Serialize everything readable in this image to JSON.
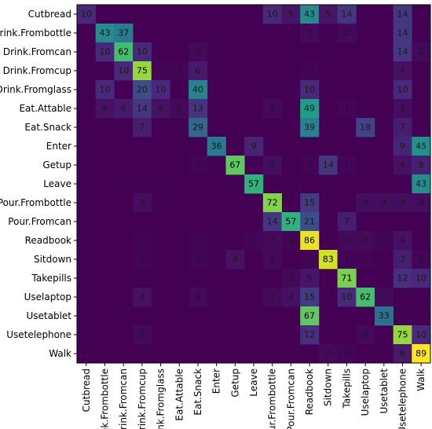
{
  "chart_data": {
    "type": "heatmap",
    "title": "",
    "xlabel": "",
    "ylabel": "",
    "rows": [
      "Cutbread",
      "Drink.Frombottle",
      "Drink.Fromcan",
      "Drink.Fromcup",
      "Drink.Fromglass",
      "Eat.Attable",
      "Eat.Snack",
      "Enter",
      "Getup",
      "Leave",
      "Pour.Frombottle",
      "Pour.Fromcan",
      "Readbook",
      "Sitdown",
      "Takepills",
      "Uselaptop",
      "Usetablet",
      "Usetelephone",
      "Walk"
    ],
    "columns": [
      "Cutbread",
      "Drink.Frombottle",
      "Drink.Fromcan",
      "Drink.Fromcup",
      "Drink.Fromglass",
      "Eat.Attable",
      "Eat.Snack",
      "Enter",
      "Getup",
      "Leave",
      "Pour.Frombottle",
      "Pour.Fromcan",
      "Readbook",
      "Sitdown",
      "Takepills",
      "Uselaptop",
      "Usetablet",
      "Usetelephone",
      "Walk"
    ],
    "value_range": [
      0,
      89
    ],
    "colormap": "viridis",
    "cells": [
      {
        "row": 0,
        "col": 0,
        "value": 10
      },
      {
        "row": 0,
        "col": 10,
        "value": 10
      },
      {
        "row": 0,
        "col": 11,
        "value": 5
      },
      {
        "row": 0,
        "col": 12,
        "value": 43
      },
      {
        "row": 0,
        "col": 13,
        "value": 5
      },
      {
        "row": 0,
        "col": 14,
        "value": 14
      },
      {
        "row": 0,
        "col": 17,
        "value": 14
      },
      {
        "row": 1,
        "col": 1,
        "value": 43
      },
      {
        "row": 1,
        "col": 2,
        "value": 37
      },
      {
        "row": 1,
        "col": 12,
        "value": 2
      },
      {
        "row": 1,
        "col": 14,
        "value": 2
      },
      {
        "row": 1,
        "col": 17,
        "value": 14
      },
      {
        "row": 2,
        "col": 1,
        "value": 10
      },
      {
        "row": 2,
        "col": 2,
        "value": 62
      },
      {
        "row": 2,
        "col": 3,
        "value": 10
      },
      {
        "row": 2,
        "col": 6,
        "value": 2
      },
      {
        "row": 2,
        "col": 17,
        "value": 14
      },
      {
        "row": 2,
        "col": 18,
        "value": 2
      },
      {
        "row": 3,
        "col": 2,
        "value": 10
      },
      {
        "row": 3,
        "col": 3,
        "value": 75
      },
      {
        "row": 3,
        "col": 4,
        "value": 1
      },
      {
        "row": 3,
        "col": 5,
        "value": 1
      },
      {
        "row": 3,
        "col": 6,
        "value": 6
      },
      {
        "row": 3,
        "col": 12,
        "value": 1
      },
      {
        "row": 3,
        "col": 17,
        "value": 4
      },
      {
        "row": 4,
        "col": 1,
        "value": 10
      },
      {
        "row": 4,
        "col": 3,
        "value": 20
      },
      {
        "row": 4,
        "col": 4,
        "value": 10
      },
      {
        "row": 4,
        "col": 6,
        "value": 40
      },
      {
        "row": 4,
        "col": 12,
        "value": 10
      },
      {
        "row": 4,
        "col": 17,
        "value": 10
      },
      {
        "row": 5,
        "col": 1,
        "value": 4
      },
      {
        "row": 5,
        "col": 2,
        "value": 6
      },
      {
        "row": 5,
        "col": 3,
        "value": 14
      },
      {
        "row": 5,
        "col": 4,
        "value": 4
      },
      {
        "row": 5,
        "col": 5,
        "value": 2
      },
      {
        "row": 5,
        "col": 6,
        "value": 13
      },
      {
        "row": 5,
        "col": 10,
        "value": 2
      },
      {
        "row": 5,
        "col": 12,
        "value": 49
      },
      {
        "row": 5,
        "col": 14,
        "value": 1
      },
      {
        "row": 5,
        "col": 17,
        "value": 3
      },
      {
        "row": 6,
        "col": 3,
        "value": 7
      },
      {
        "row": 6,
        "col": 6,
        "value": 29
      },
      {
        "row": 6,
        "col": 12,
        "value": 39
      },
      {
        "row": 6,
        "col": 15,
        "value": 18
      },
      {
        "row": 6,
        "col": 17,
        "value": 7
      },
      {
        "row": 7,
        "col": 7,
        "value": 36
      },
      {
        "row": 7,
        "col": 9,
        "value": 9
      },
      {
        "row": 7,
        "col": 17,
        "value": 9
      },
      {
        "row": 7,
        "col": 18,
        "value": 45
      },
      {
        "row": 8,
        "col": 6,
        "value": 1
      },
      {
        "row": 8,
        "col": 8,
        "value": 67
      },
      {
        "row": 8,
        "col": 10,
        "value": 3
      },
      {
        "row": 8,
        "col": 12,
        "value": 1
      },
      {
        "row": 8,
        "col": 13,
        "value": 14
      },
      {
        "row": 8,
        "col": 14,
        "value": 1
      },
      {
        "row": 8,
        "col": 17,
        "value": 4
      },
      {
        "row": 8,
        "col": 18,
        "value": 8
      },
      {
        "row": 9,
        "col": 9,
        "value": 57
      },
      {
        "row": 9,
        "col": 18,
        "value": 43
      },
      {
        "row": 10,
        "col": 3,
        "value": 3
      },
      {
        "row": 10,
        "col": 10,
        "value": 72
      },
      {
        "row": 10,
        "col": 12,
        "value": 15
      },
      {
        "row": 10,
        "col": 15,
        "value": 3
      },
      {
        "row": 10,
        "col": 16,
        "value": 3
      },
      {
        "row": 10,
        "col": 17,
        "value": 3
      },
      {
        "row": 10,
        "col": 18,
        "value": 3
      },
      {
        "row": 11,
        "col": 10,
        "value": 14
      },
      {
        "row": 11,
        "col": 11,
        "value": 57
      },
      {
        "row": 11,
        "col": 12,
        "value": 21
      },
      {
        "row": 11,
        "col": 14,
        "value": 7
      },
      {
        "row": 12,
        "col": 3,
        "value": 1
      },
      {
        "row": 12,
        "col": 6,
        "value": 1
      },
      {
        "row": 12,
        "col": 9,
        "value": 1
      },
      {
        "row": 12,
        "col": 10,
        "value": 2
      },
      {
        "row": 12,
        "col": 11,
        "value": 1
      },
      {
        "row": 12,
        "col": 12,
        "value": 86
      },
      {
        "row": 12,
        "col": 14,
        "value": 2
      },
      {
        "row": 12,
        "col": 15,
        "value": 2
      },
      {
        "row": 12,
        "col": 16,
        "value": 1
      },
      {
        "row": 12,
        "col": 17,
        "value": 4
      },
      {
        "row": 13,
        "col": 3,
        "value": 1
      },
      {
        "row": 13,
        "col": 6,
        "value": 1
      },
      {
        "row": 13,
        "col": 8,
        "value": 4
      },
      {
        "row": 13,
        "col": 10,
        "value": 2
      },
      {
        "row": 13,
        "col": 12,
        "value": 1
      },
      {
        "row": 13,
        "col": 13,
        "value": 83
      },
      {
        "row": 13,
        "col": 14,
        "value": 1
      },
      {
        "row": 13,
        "col": 15,
        "value": 1
      },
      {
        "row": 13,
        "col": 17,
        "value": 7
      },
      {
        "row": 13,
        "col": 18,
        "value": 1
      },
      {
        "row": 14,
        "col": 11,
        "value": 2
      },
      {
        "row": 14,
        "col": 12,
        "value": 5
      },
      {
        "row": 14,
        "col": 14,
        "value": 71
      },
      {
        "row": 14,
        "col": 17,
        "value": 12
      },
      {
        "row": 14,
        "col": 18,
        "value": 10
      },
      {
        "row": 15,
        "col": 3,
        "value": 4
      },
      {
        "row": 15,
        "col": 6,
        "value": 2
      },
      {
        "row": 15,
        "col": 10,
        "value": 2
      },
      {
        "row": 15,
        "col": 11,
        "value": 4
      },
      {
        "row": 15,
        "col": 12,
        "value": 15
      },
      {
        "row": 15,
        "col": 14,
        "value": 10
      },
      {
        "row": 15,
        "col": 15,
        "value": 62
      },
      {
        "row": 15,
        "col": 16,
        "value": 2
      },
      {
        "row": 16,
        "col": 12,
        "value": 67
      },
      {
        "row": 16,
        "col": 16,
        "value": 33
      },
      {
        "row": 17,
        "col": 3,
        "value": 2
      },
      {
        "row": 17,
        "col": 12,
        "value": 12
      },
      {
        "row": 17,
        "col": 15,
        "value": 2
      },
      {
        "row": 17,
        "col": 17,
        "value": 75
      },
      {
        "row": 17,
        "col": 18,
        "value": 10
      },
      {
        "row": 18,
        "col": 13,
        "value": 2
      },
      {
        "row": 18,
        "col": 14,
        "value": 1
      },
      {
        "row": 18,
        "col": 17,
        "value": 6
      },
      {
        "row": 18,
        "col": 18,
        "value": 89
      }
    ]
  }
}
